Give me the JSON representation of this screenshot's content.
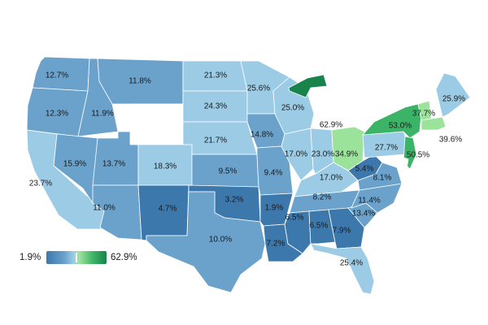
{
  "legend": {
    "min_label": "1.9%",
    "max_label": "62.9%",
    "min": 1.9,
    "max": 62.9
  },
  "colors": {
    "blue_light": "#9ccbe5",
    "blue_mid": "#6aa2cc",
    "blue_dark": "#3d78ad",
    "green_light": "#9be39b",
    "green_mid": "#3cb468",
    "green_dark": "#18834a",
    "no_data": "#ffffff"
  },
  "states": [
    {
      "id": "WA",
      "label": "12.7%",
      "value": 12.7
    },
    {
      "id": "OR",
      "label": "12.3%",
      "value": 12.3
    },
    {
      "id": "CA",
      "label": "23.7%",
      "value": 23.7
    },
    {
      "id": "NV",
      "label": "15.9%",
      "value": 15.9
    },
    {
      "id": "ID",
      "label": "11.9%",
      "value": 11.9
    },
    {
      "id": "MT",
      "label": "11.8%",
      "value": 11.8
    },
    {
      "id": "WY",
      "label": "",
      "value": null
    },
    {
      "id": "UT",
      "label": "13.7%",
      "value": 13.7
    },
    {
      "id": "CO",
      "label": "18.3%",
      "value": 18.3
    },
    {
      "id": "AZ",
      "label": "11.0%",
      "value": 11.0
    },
    {
      "id": "NM",
      "label": "4.7%",
      "value": 4.7
    },
    {
      "id": "ND",
      "label": "21.3%",
      "value": 21.3
    },
    {
      "id": "SD",
      "label": "24.3%",
      "value": 24.3
    },
    {
      "id": "NE",
      "label": "21.7%",
      "value": 21.7
    },
    {
      "id": "KS",
      "label": "9.5%",
      "value": 9.5
    },
    {
      "id": "OK",
      "label": "3.2%",
      "value": 3.2
    },
    {
      "id": "TX",
      "label": "10.0%",
      "value": 10.0
    },
    {
      "id": "MN",
      "label": "25.6%",
      "value": 25.6
    },
    {
      "id": "IA",
      "label": "14.8%",
      "value": 14.8
    },
    {
      "id": "MO",
      "label": "9.4%",
      "value": 9.4
    },
    {
      "id": "AR",
      "label": "1.9%",
      "value": 1.9
    },
    {
      "id": "LA",
      "label": "7.2%",
      "value": 7.2
    },
    {
      "id": "WI",
      "label": "25.0%",
      "value": 25.0
    },
    {
      "id": "IL",
      "label": "17.0%",
      "value": 17.0
    },
    {
      "id": "MI",
      "label": "62.9%",
      "value": 62.9
    },
    {
      "id": "IN",
      "label": "23.0%",
      "value": 23.0
    },
    {
      "id": "OH",
      "label": "34.9%",
      "value": 34.9
    },
    {
      "id": "KY",
      "label": "17.0%",
      "value": 17.0
    },
    {
      "id": "TN",
      "label": "8.2%",
      "value": 8.2
    },
    {
      "id": "MS",
      "label": "6.5%",
      "value": 6.5
    },
    {
      "id": "AL",
      "label": "6.5%",
      "value": 6.5
    },
    {
      "id": "GA",
      "label": "7.9%",
      "value": 7.9
    },
    {
      "id": "FL",
      "label": "25.4%",
      "value": 25.4
    },
    {
      "id": "SC",
      "label": "13.4%",
      "value": 13.4
    },
    {
      "id": "NC",
      "label": "11.4%",
      "value": 11.4
    },
    {
      "id": "VA",
      "label": "8.1%",
      "value": 8.1
    },
    {
      "id": "WV",
      "label": "5.4%",
      "value": 5.4
    },
    {
      "id": "PA",
      "label": "27.7%",
      "value": 27.7
    },
    {
      "id": "NY",
      "label": "53.0%",
      "value": 53.0
    },
    {
      "id": "NJ",
      "label": "50.5%",
      "value": 50.5
    },
    {
      "id": "MD",
      "label": "",
      "value": null
    },
    {
      "id": "DE",
      "label": "",
      "value": null
    },
    {
      "id": "CT",
      "label": "",
      "value": null
    },
    {
      "id": "RI",
      "label": "",
      "value": null
    },
    {
      "id": "MA",
      "label": "39.6%",
      "value": 39.6
    },
    {
      "id": "VT",
      "label": "37.7%",
      "value": 37.7
    },
    {
      "id": "NH",
      "label": "",
      "value": null
    },
    {
      "id": "ME",
      "label": "25.9%",
      "value": 25.9
    }
  ]
}
